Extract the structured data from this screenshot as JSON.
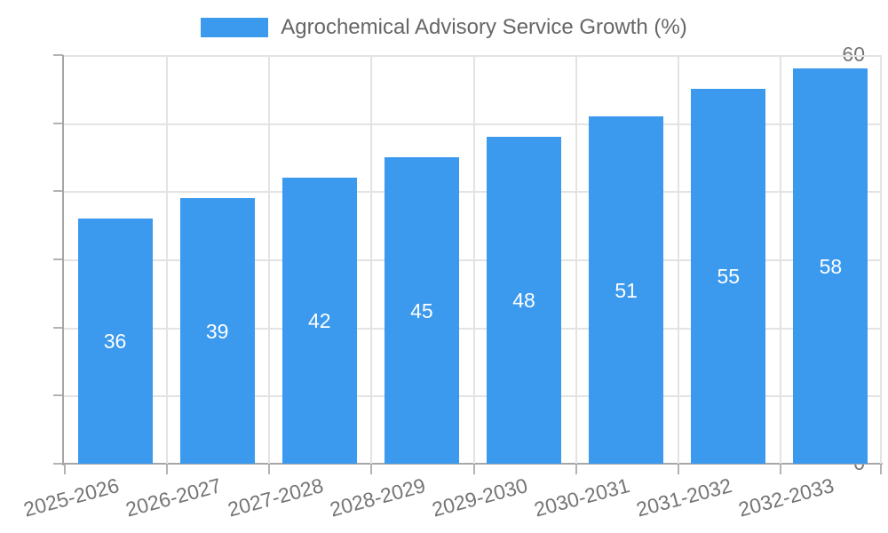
{
  "chart_data": {
    "type": "bar",
    "title": "Agrochemical Advisory Service Growth (%)",
    "categories": [
      "2025-2026",
      "2026-2027",
      "2027-2028",
      "2028-2029",
      "2029-2030",
      "2030-2031",
      "2031-2032",
      "2032-2033"
    ],
    "values": [
      36,
      39,
      42,
      45,
      48,
      51,
      55,
      58
    ],
    "xlabel": "",
    "ylabel": "",
    "ylim": [
      0,
      60
    ],
    "yticks": [
      0,
      10,
      20,
      30,
      40,
      50,
      60
    ],
    "grid": true,
    "legend_position": "top-center",
    "value_labels": "inside-center",
    "colors": {
      "bar": "#3B99EE",
      "value_label": "#ffffff",
      "axis_text": "#757575",
      "legend_text": "#666666",
      "grid_line": "#e3e3e3",
      "axis_line": "#a6a6a6",
      "tick_mark": "#b3b3b3",
      "background": "#ffffff"
    }
  }
}
